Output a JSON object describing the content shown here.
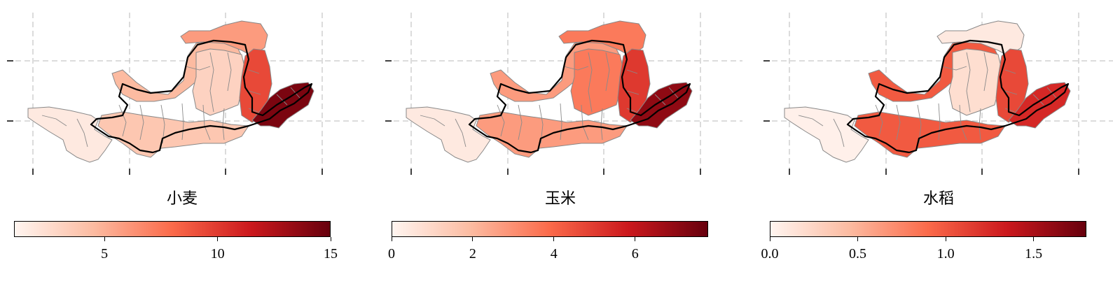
{
  "colormap": [
    "#fff5f0",
    "#fcbba1",
    "#fb6a4a",
    "#cb181d",
    "#67000d"
  ],
  "panels": [
    {
      "title": "小麦",
      "colorbar": {
        "min": 1.0,
        "max": 15.0,
        "ticks": [
          5,
          10,
          15
        ],
        "tick_labels": [
          "5",
          "10",
          "15"
        ]
      },
      "regions": {
        "west": "0.05",
        "loop": "0.25",
        "north": "0.35",
        "center": "0.15",
        "south": "0.2",
        "east": "0.6",
        "delta": "0.95"
      }
    },
    {
      "title": "玉米",
      "colorbar": {
        "min": 0.0,
        "max": 7.8,
        "ticks": [
          0,
          2,
          4,
          6
        ],
        "tick_labels": [
          "0",
          "2",
          "4",
          "6"
        ]
      },
      "regions": {
        "west": "0.05",
        "loop": "0.35",
        "north": "0.45",
        "center": "0.45",
        "south": "0.35",
        "east": "0.65",
        "delta": "0.9"
      }
    },
    {
      "title": "水稻",
      "colorbar": {
        "min": 0.0,
        "max": 1.8,
        "ticks": [
          0.0,
          0.5,
          1.0,
          1.5
        ],
        "tick_labels": [
          "0.0",
          "0.5",
          "1.0",
          "1.5"
        ]
      },
      "regions": {
        "west": "0.02",
        "loop": "0.55",
        "north": "0.05",
        "center": "0.1",
        "south": "0.55",
        "east": "0.6",
        "delta": "0.7"
      }
    }
  ]
}
